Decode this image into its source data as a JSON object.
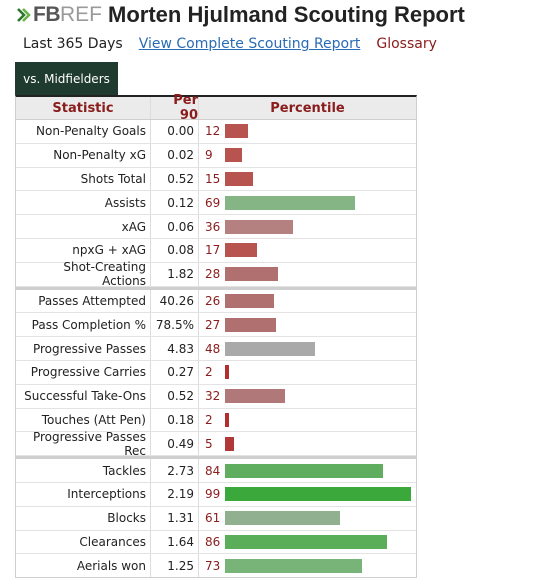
{
  "header": {
    "logo_fb": "FB",
    "logo_ref": "REF",
    "title": "Morten Hjulmand Scouting Report"
  },
  "subnav": {
    "range": "Last 365 Days",
    "full_report_link": "View Complete Scouting Report",
    "glossary": "Glossary"
  },
  "tab": {
    "label": "vs. Midfielders"
  },
  "table": {
    "columns": [
      "Statistic",
      "Per 90",
      "Percentile"
    ],
    "rows": [
      {
        "stat": "Non-Penalty Goals",
        "per90": "0.00",
        "pct": 12,
        "color": "#b85450"
      },
      {
        "stat": "Non-Penalty xG",
        "per90": "0.02",
        "pct": 9,
        "color": "#b85450"
      },
      {
        "stat": "Shots Total",
        "per90": "0.52",
        "pct": 15,
        "color": "#b85450"
      },
      {
        "stat": "Assists",
        "per90": "0.12",
        "pct": 69,
        "color": "#85b585"
      },
      {
        "stat": "xAG",
        "per90": "0.06",
        "pct": 36,
        "color": "#b58080"
      },
      {
        "stat": "npxG + xAG",
        "per90": "0.08",
        "pct": 17,
        "color": "#b85450"
      },
      {
        "stat": "Shot-Creating Actions",
        "per90": "1.82",
        "pct": 28,
        "color": "#b07070"
      },
      {
        "stat": "Passes Attempted",
        "per90": "40.26",
        "pct": 26,
        "color": "#b07070",
        "sep": true
      },
      {
        "stat": "Pass Completion %",
        "per90": "78.5%",
        "pct": 27,
        "color": "#b07070"
      },
      {
        "stat": "Progressive Passes",
        "per90": "4.83",
        "pct": 48,
        "color": "#a9a9a9"
      },
      {
        "stat": "Progressive Carries",
        "per90": "0.27",
        "pct": 2,
        "color": "#b03030"
      },
      {
        "stat": "Successful Take-Ons",
        "per90": "0.52",
        "pct": 32,
        "color": "#b07878"
      },
      {
        "stat": "Touches (Att Pen)",
        "per90": "0.18",
        "pct": 2,
        "color": "#b03030"
      },
      {
        "stat": "Progressive Passes Rec",
        "per90": "0.49",
        "pct": 5,
        "color": "#b03838"
      },
      {
        "stat": "Tackles",
        "per90": "2.73",
        "pct": 84,
        "color": "#5fae5f",
        "sep": true
      },
      {
        "stat": "Interceptions",
        "per90": "2.19",
        "pct": 99,
        "color": "#3aa83a"
      },
      {
        "stat": "Blocks",
        "per90": "1.31",
        "pct": 61,
        "color": "#90b090"
      },
      {
        "stat": "Clearances",
        "per90": "1.64",
        "pct": 86,
        "color": "#5aae5a"
      },
      {
        "stat": "Aerials won",
        "per90": "1.25",
        "pct": 73,
        "color": "#78b478"
      }
    ]
  }
}
